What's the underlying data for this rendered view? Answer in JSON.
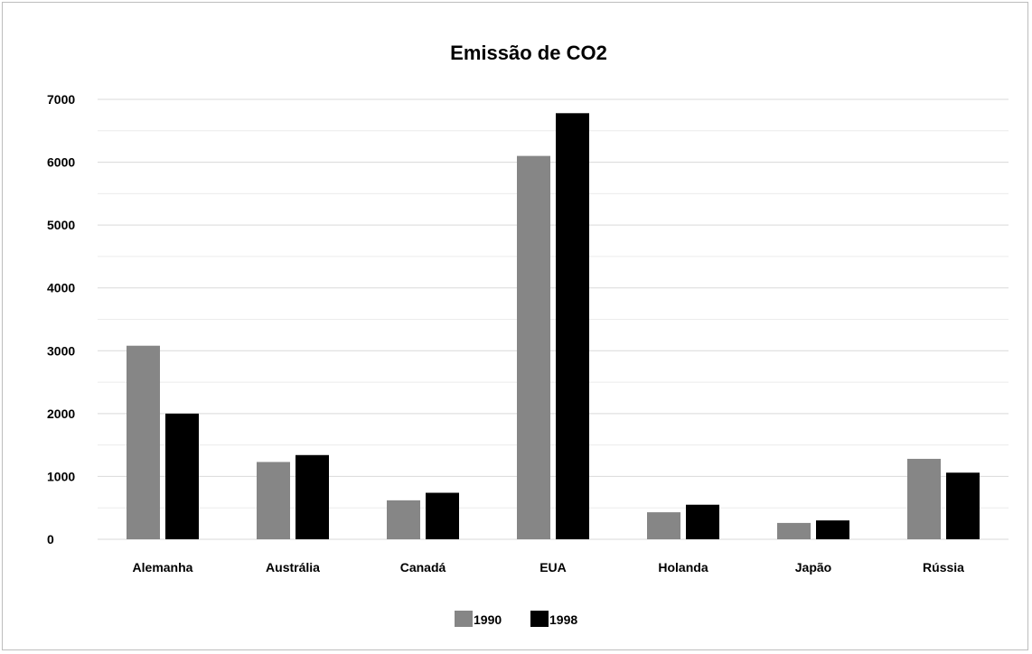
{
  "chart_data": {
    "type": "bar",
    "title": "Emissão de CO2",
    "xlabel": "",
    "ylabel": "",
    "ylim": [
      0,
      7000
    ],
    "yticks": [
      0,
      1000,
      2000,
      3000,
      4000,
      5000,
      6000,
      7000
    ],
    "grid": true,
    "legend_position": "bottom",
    "categories": [
      "Alemanha",
      "Austrália",
      "Canadá",
      "EUA",
      "Holanda",
      "Japão",
      "Rússia"
    ],
    "series": [
      {
        "name": "1990",
        "color": "#868686",
        "values": [
          3080,
          1230,
          620,
          6100,
          430,
          260,
          1280
        ]
      },
      {
        "name": "1998",
        "color": "#000000",
        "values": [
          2000,
          1340,
          740,
          6780,
          550,
          300,
          1060
        ]
      }
    ]
  }
}
